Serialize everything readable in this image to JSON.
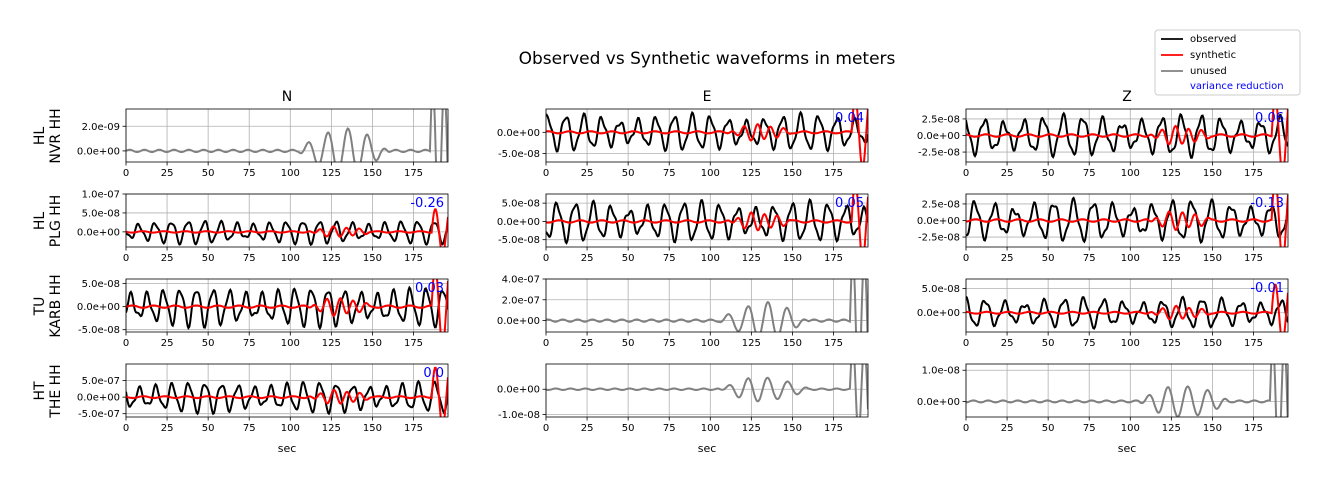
{
  "figure": {
    "title": "Observed vs Synthetic waveforms in meters",
    "columns": [
      "N",
      "E",
      "Z"
    ],
    "xlabel": "sec",
    "rows": [
      {
        "network": "HL",
        "station": "NVR HH"
      },
      {
        "network": "HL",
        "station": "PLG HH"
      },
      {
        "network": "TU",
        "station": "KARB HH"
      },
      {
        "network": "HT",
        "station": "THE HH"
      }
    ],
    "legend": {
      "placement": "top-right",
      "entries": [
        {
          "label": "observed",
          "color": "#000000"
        },
        {
          "label": "synthetic",
          "color": "#ff0000"
        },
        {
          "label": "unused",
          "color": "#808080"
        },
        {
          "label": "variance reduction",
          "color": "#0000ff",
          "text_only": true
        }
      ]
    },
    "colors": {
      "observed": "#000000",
      "synthetic": "#ff0000",
      "unused": "#808080",
      "vr": "#0000ff"
    }
  },
  "chart_data": [
    {
      "type": "line",
      "station": "HL NVR HH",
      "component": "N",
      "status": "unused",
      "xlim": [
        0,
        196
      ],
      "ylim": [
        -9e-10,
        3.4e-09
      ],
      "yticks": [
        0,
        2e-09
      ],
      "ytick_labels": [
        "0.0e+00",
        "2.0e-09"
      ],
      "xticks": [
        0,
        25,
        50,
        75,
        100,
        125,
        150,
        175
      ],
      "variance_reduction": null,
      "grid": true
    },
    {
      "type": "line",
      "station": "HL NVR HH",
      "component": "E",
      "status": "used",
      "xlim": [
        0,
        196
      ],
      "ylim": [
        -7e-08,
        5.5e-08
      ],
      "yticks": [
        -5e-08,
        0
      ],
      "ytick_labels": [
        "-5.0e-08",
        "0.0e+00"
      ],
      "xticks": [
        0,
        25,
        50,
        75,
        100,
        125,
        150,
        175
      ],
      "variance_reduction": "0.04",
      "grid": true
    },
    {
      "type": "line",
      "station": "HL NVR HH",
      "component": "Z",
      "status": "used",
      "xlim": [
        0,
        196
      ],
      "ylim": [
        -4e-08,
        4e-08
      ],
      "yticks": [
        -2.5e-08,
        0,
        2.5e-08
      ],
      "ytick_labels": [
        "-2.5e-08",
        "0.0e+00",
        "2.5e-08"
      ],
      "xticks": [
        0,
        25,
        50,
        75,
        100,
        125,
        150,
        175
      ],
      "variance_reduction": "0.06",
      "grid": true
    },
    {
      "type": "line",
      "station": "HL PLG HH",
      "component": "N",
      "status": "used",
      "xlim": [
        0,
        196
      ],
      "ylim": [
        -4e-08,
        1e-07
      ],
      "yticks": [
        0,
        5e-08,
        1e-07
      ],
      "ytick_labels": [
        "0.0e+00",
        "5.0e-08",
        "1.0e-07"
      ],
      "xticks": [
        0,
        25,
        50,
        75,
        100,
        125,
        150,
        175
      ],
      "variance_reduction": "-0.26",
      "grid": true
    },
    {
      "type": "line",
      "station": "HL PLG HH",
      "component": "E",
      "status": "used",
      "xlim": [
        0,
        196
      ],
      "ylim": [
        -7e-08,
        7.5e-08
      ],
      "yticks": [
        -5e-08,
        0,
        5e-08
      ],
      "ytick_labels": [
        "-5.0e-08",
        "0.0e+00",
        "5.0e-08"
      ],
      "xticks": [
        0,
        25,
        50,
        75,
        100,
        125,
        150,
        175
      ],
      "variance_reduction": "0.05",
      "grid": true
    },
    {
      "type": "line",
      "station": "HL PLG HH",
      "component": "Z",
      "status": "used",
      "xlim": [
        0,
        196
      ],
      "ylim": [
        -4e-08,
        4e-08
      ],
      "yticks": [
        -2.5e-08,
        0,
        2.5e-08
      ],
      "ytick_labels": [
        "-2.5e-08",
        "0.0e+00",
        "2.5e-08"
      ],
      "xticks": [
        0,
        25,
        50,
        75,
        100,
        125,
        150,
        175
      ],
      "variance_reduction": "-0.13",
      "grid": true
    },
    {
      "type": "line",
      "station": "TU KARB HH",
      "component": "N",
      "status": "used",
      "xlim": [
        0,
        196
      ],
      "ylim": [
        -5.5e-08,
        6e-08
      ],
      "yticks": [
        -5e-08,
        0,
        5e-08
      ],
      "ytick_labels": [
        "-5.0e-08",
        "0.0e+00",
        "5.0e-08"
      ],
      "xticks": [
        0,
        25,
        50,
        75,
        100,
        125,
        150,
        175
      ],
      "variance_reduction": "0.03",
      "grid": true
    },
    {
      "type": "line",
      "station": "TU KARB HH",
      "component": "E",
      "status": "unused",
      "xlim": [
        0,
        196
      ],
      "ylim": [
        -1.1e-07,
        4e-07
      ],
      "yticks": [
        0,
        2e-07,
        4e-07
      ],
      "ytick_labels": [
        "0.0e+00",
        "2.0e-07",
        "4.0e-07"
      ],
      "xticks": [
        0,
        25,
        50,
        75,
        100,
        125,
        150,
        175
      ],
      "variance_reduction": null,
      "grid": true
    },
    {
      "type": "line",
      "station": "TU KARB HH",
      "component": "Z",
      "status": "used",
      "xlim": [
        0,
        196
      ],
      "ylim": [
        -4e-08,
        7e-08
      ],
      "yticks": [
        0,
        5e-08
      ],
      "ytick_labels": [
        "0.0e+00",
        "5.0e-08"
      ],
      "xticks": [
        0,
        25,
        50,
        75,
        100,
        125,
        150,
        175
      ],
      "variance_reduction": "-0.01",
      "grid": true
    },
    {
      "type": "line",
      "station": "HT THE HH",
      "component": "N",
      "status": "used",
      "xlim": [
        0,
        196
      ],
      "ylim": [
        -6e-07,
        1e-06
      ],
      "yticks": [
        -5e-07,
        0,
        5e-07
      ],
      "ytick_labels": [
        "-5.0e-07",
        "0.0e+00",
        "5.0e-07"
      ],
      "xticks": [
        0,
        25,
        50,
        75,
        100,
        125,
        150,
        175
      ],
      "variance_reduction": "0.0",
      "grid": true
    },
    {
      "type": "line",
      "station": "HT THE HH",
      "component": "E",
      "status": "unused",
      "xlim": [
        0,
        196
      ],
      "ylim": [
        -1.1e-08,
        1e-08
      ],
      "yticks": [
        -1e-08,
        0
      ],
      "ytick_labels": [
        "-1.0e-08",
        "0.0e+00"
      ],
      "xticks": [
        0,
        25,
        50,
        75,
        100,
        125,
        150,
        175
      ],
      "variance_reduction": null,
      "grid": true
    },
    {
      "type": "line",
      "station": "HT THE HH",
      "component": "Z",
      "status": "unused",
      "xlim": [
        0,
        196
      ],
      "ylim": [
        -5e-09,
        1.2e-08
      ],
      "yticks": [
        0,
        1e-08
      ],
      "ytick_labels": [
        "0.0e+00",
        "1.0e-08"
      ],
      "xticks": [
        0,
        25,
        50,
        75,
        100,
        125,
        150,
        175
      ],
      "variance_reduction": null,
      "grid": true
    }
  ]
}
